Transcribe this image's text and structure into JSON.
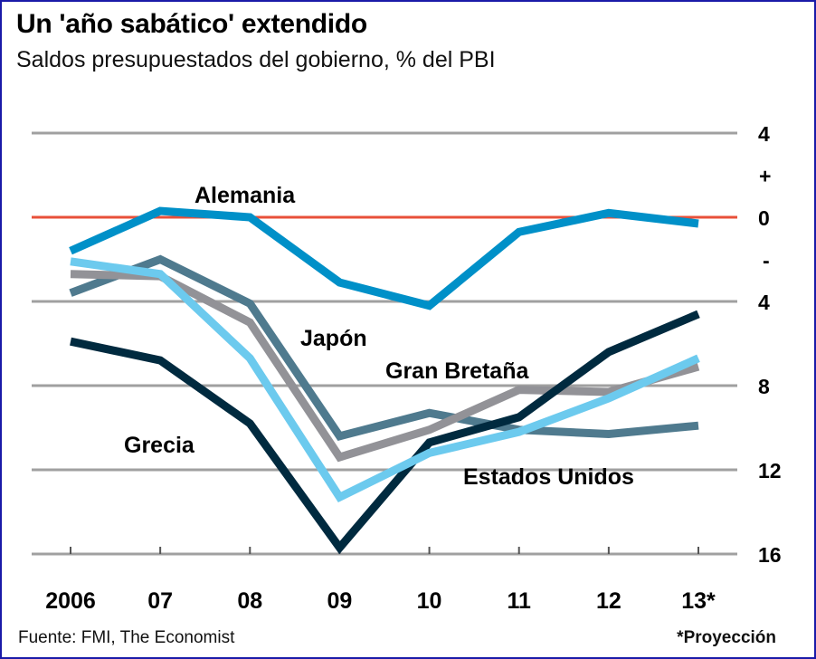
{
  "header": {
    "title": "Un 'año sabático' extendido",
    "subtitle": "Saldos presupuestados del gobierno, % del PBI"
  },
  "footer": {
    "source": "Fuente: FMI, The Economist",
    "note": "*Proyección"
  },
  "chart_data": {
    "type": "line",
    "title": "Un 'año sabático' extendido",
    "subtitle": "Saldos presupuestados del gobierno, % del PBI",
    "xlabel": "",
    "ylabel": "% del PBI",
    "categories": [
      "2006",
      "07",
      "08",
      "09",
      "10",
      "11",
      "12",
      "13*"
    ],
    "ylim": [
      -16,
      4
    ],
    "yticks": [
      {
        "value": 4,
        "label": "4"
      },
      {
        "value": 0,
        "label": "0"
      },
      {
        "value": -4,
        "label": "4"
      },
      {
        "value": -8,
        "label": "8"
      },
      {
        "value": -12,
        "label": "12"
      },
      {
        "value": -16,
        "label": "16"
      }
    ],
    "sign_labels": {
      "plus": "+",
      "minus": "-"
    },
    "zero_line_color": "#e8503a",
    "grid_color": "#a0a0a0",
    "grid": true,
    "legend": "inline-labels",
    "series": [
      {
        "name": "Japón",
        "color": "#4f7a8e",
        "values": [
          -3.6,
          -2.0,
          -4.1,
          -10.4,
          -9.3,
          -10.1,
          -10.3,
          -9.9
        ]
      },
      {
        "name": "Gran Bretaña",
        "color": "#929297",
        "values": [
          -2.7,
          -2.8,
          -5.0,
          -11.4,
          -10.1,
          -8.2,
          -8.3,
          -7.1
        ]
      },
      {
        "name": "Grecia",
        "color": "#002a3f",
        "values": [
          -5.9,
          -6.8,
          -9.8,
          -15.7,
          -10.7,
          -9.5,
          -6.4,
          -4.6
        ]
      },
      {
        "name": "Estados Unidos",
        "color": "#6ccaee",
        "values": [
          -2.1,
          -2.7,
          -6.7,
          -13.3,
          -11.2,
          -10.2,
          -8.6,
          -6.7
        ]
      },
      {
        "name": "Alemania",
        "color": "#0090c8",
        "values": [
          -1.6,
          0.3,
          0.0,
          -3.1,
          -4.2,
          -0.7,
          0.2,
          -0.3
        ]
      }
    ],
    "annotations": [
      "Alemania",
      "Japón",
      "Gran Bretaña",
      "Grecia",
      "Estados Unidos"
    ],
    "projection_note": "*Proyección"
  }
}
